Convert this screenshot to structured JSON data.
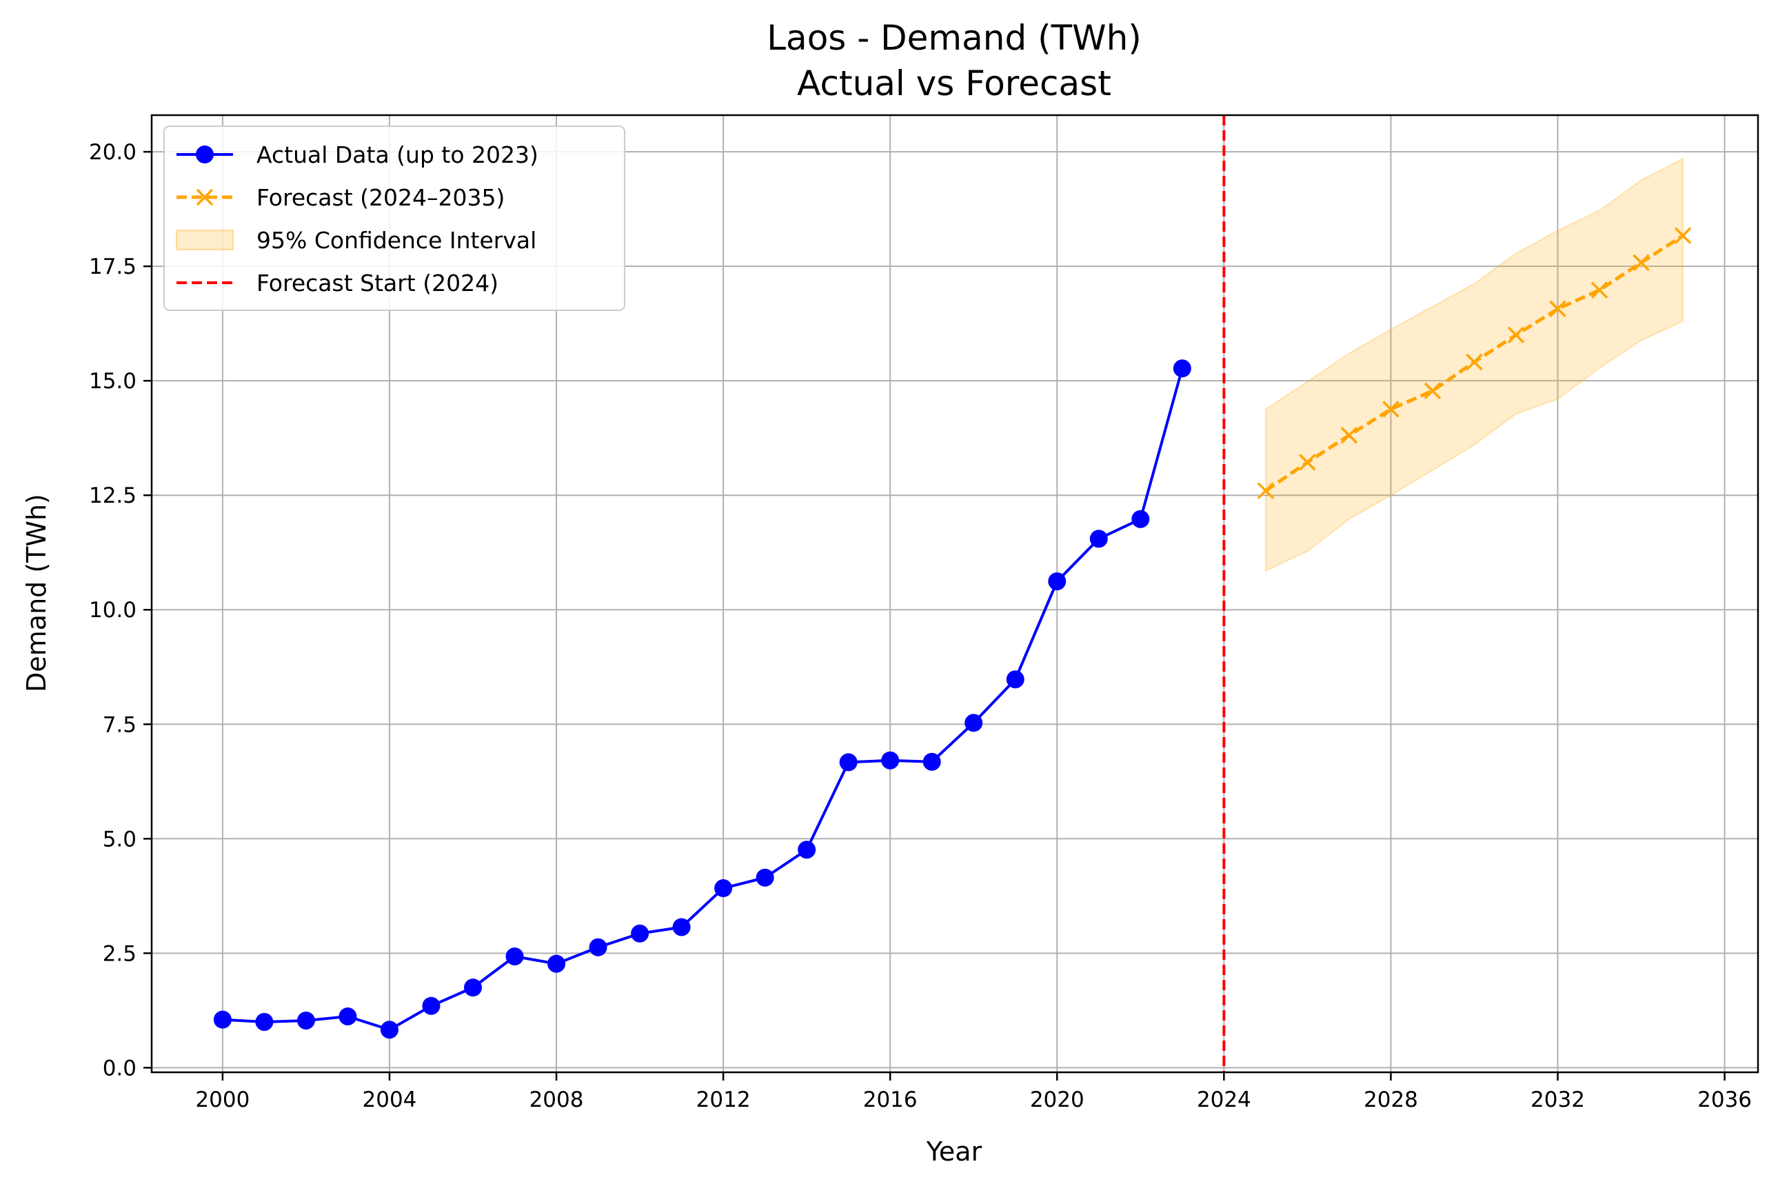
{
  "chart_data": {
    "type": "line",
    "title": "Laos - Demand (TWh)",
    "subtitle": "Actual vs Forecast",
    "xlabel": "Year",
    "ylabel": "Demand (TWh)",
    "xlim": [
      1998.3,
      2036.8
    ],
    "ylim": [
      -0.1,
      20.8
    ],
    "x_ticks": [
      2000,
      2004,
      2008,
      2012,
      2016,
      2020,
      2024,
      2028,
      2032,
      2036
    ],
    "x_tick_labels": [
      "2000",
      "2004",
      "2008",
      "2012",
      "2016",
      "2020",
      "2024",
      "2028",
      "2032",
      "2036"
    ],
    "y_ticks": [
      0.0,
      2.5,
      5.0,
      7.5,
      10.0,
      12.5,
      15.0,
      17.5,
      20.0
    ],
    "y_tick_labels": [
      "0.0",
      "2.5",
      "5.0",
      "7.5",
      "10.0",
      "12.5",
      "15.0",
      "17.5",
      "20.0"
    ],
    "grid": true,
    "legend_position": "top-left",
    "series": [
      {
        "name": "Actual Data (up to 2023)",
        "color": "#0000ff",
        "style": "solid",
        "marker": "circle",
        "x": [
          2000,
          2001,
          2002,
          2003,
          2004,
          2005,
          2006,
          2007,
          2008,
          2009,
          2010,
          2011,
          2012,
          2013,
          2014,
          2015,
          2016,
          2017,
          2018,
          2019,
          2020,
          2021,
          2022,
          2023
        ],
        "y": [
          1.05,
          1.0,
          1.03,
          1.12,
          0.83,
          1.35,
          1.75,
          2.43,
          2.27,
          2.63,
          2.93,
          3.07,
          3.92,
          4.15,
          4.76,
          6.67,
          6.71,
          6.68,
          7.53,
          8.48,
          10.62,
          11.55,
          11.98,
          15.27
        ]
      },
      {
        "name": "Forecast (2024–2035)",
        "color": "#ffa500",
        "style": "dashed",
        "marker": "x",
        "x": [
          2025,
          2026,
          2027,
          2028,
          2029,
          2030,
          2031,
          2032,
          2033,
          2034,
          2035
        ],
        "y": [
          12.6,
          13.22,
          13.81,
          14.38,
          14.78,
          15.41,
          16.0,
          16.57,
          16.98,
          17.58,
          18.17
        ]
      }
    ],
    "confidence_interval": {
      "name": "95% Confidence Interval",
      "color": "#ffa500",
      "x": [
        2025,
        2026,
        2027,
        2028,
        2029,
        2030,
        2031,
        2032,
        2033,
        2034,
        2035
      ],
      "lower": [
        10.85,
        11.28,
        11.98,
        12.5,
        13.05,
        13.6,
        14.28,
        14.6,
        15.28,
        15.88,
        16.3
      ],
      "upper": [
        14.38,
        14.98,
        15.6,
        16.12,
        16.62,
        17.12,
        17.78,
        18.28,
        18.72,
        19.38,
        19.85
      ]
    },
    "vertical_line": {
      "name": "Forecast Start (2024)",
      "x": 2024,
      "color": "#ff0000",
      "style": "dashed"
    }
  }
}
